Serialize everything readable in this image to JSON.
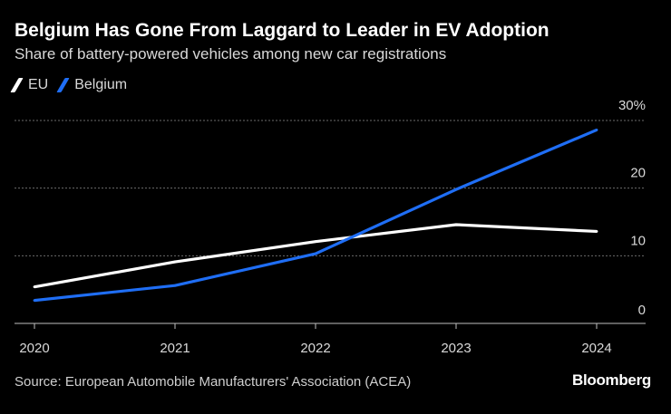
{
  "header": {
    "title": "Belgium Has Gone From Laggard to Leader in EV Adoption",
    "subtitle": "Share of battery-powered vehicles among new car registrations"
  },
  "legend": [
    {
      "label": "EU",
      "color": "#ffffff"
    },
    {
      "label": "Belgium",
      "color": "#1f6ef5"
    }
  ],
  "chart_data": {
    "type": "line",
    "title": "Belgium Has Gone From Laggard to Leader in EV Adoption",
    "subtitle": "Share of battery-powered vehicles among new car registrations",
    "xlabel": "",
    "ylabel": "",
    "categories": [
      "2020",
      "2021",
      "2022",
      "2023",
      "2024"
    ],
    "series": [
      {
        "name": "EU",
        "color": "#ffffff",
        "values": [
          5.4,
          9.1,
          12.1,
          14.6,
          13.6
        ]
      },
      {
        "name": "Belgium",
        "color": "#1f6ef5",
        "values": [
          3.4,
          5.6,
          10.3,
          19.8,
          28.6
        ]
      }
    ],
    "ylim": [
      0,
      30
    ],
    "yticks": [
      0,
      10,
      20,
      30
    ],
    "ytick_labels": [
      "0",
      "10",
      "20",
      "30%"
    ],
    "grid": true,
    "legend_position": "top-left"
  },
  "footer": {
    "source": "Source: European Automobile Manufacturers' Association (ACEA)",
    "brand": "Bloomberg"
  }
}
